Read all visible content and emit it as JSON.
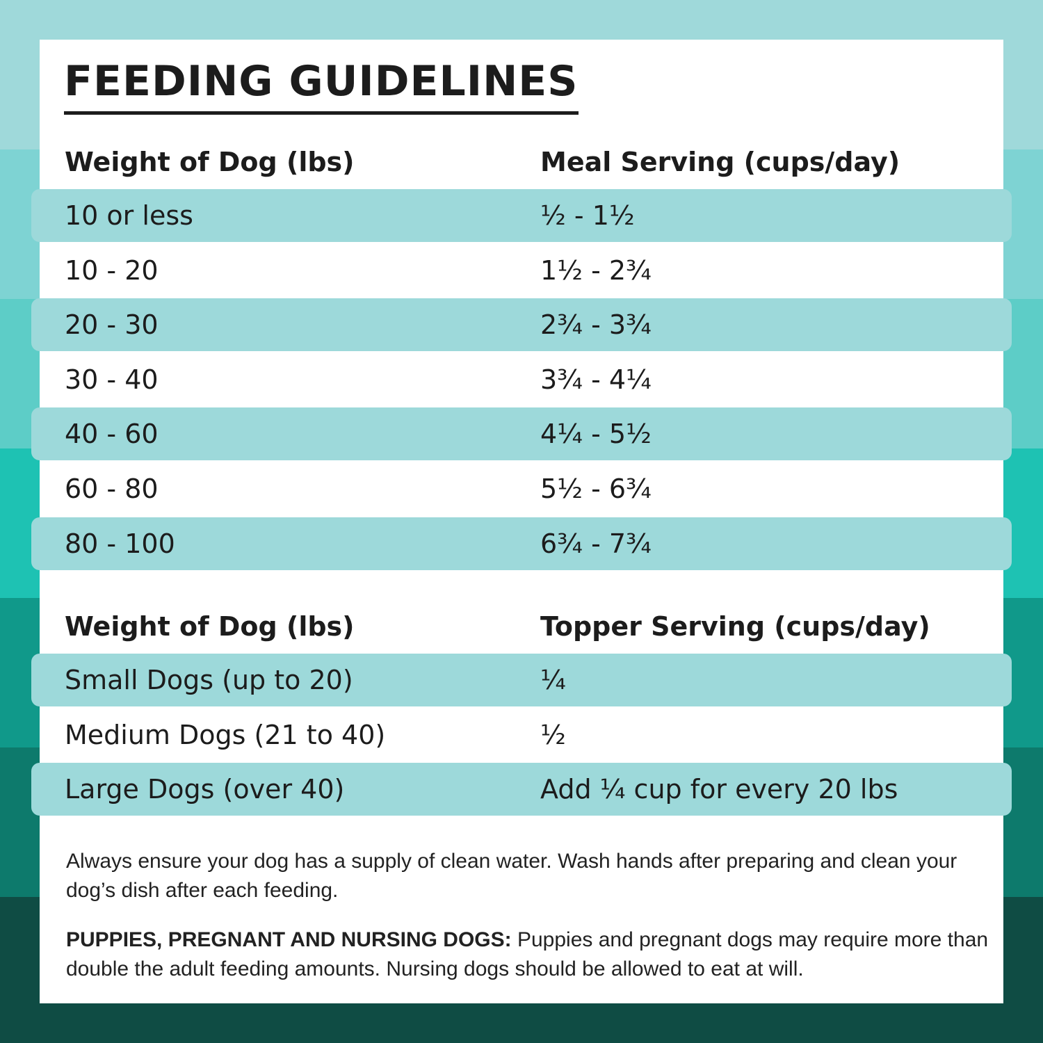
{
  "title": "FEEDING GUIDELINES",
  "tables": [
    {
      "header": [
        "Weight of Dog (lbs)",
        "Meal Serving (cups/day)"
      ],
      "rows": [
        [
          "10 or less",
          "½ - 1½"
        ],
        [
          "10 - 20",
          "1½ - 2¾"
        ],
        [
          "20 - 30",
          "2¾ - 3¾"
        ],
        [
          "30 - 40",
          "3¾ - 4¼"
        ],
        [
          "40 - 60",
          "4¼ - 5½"
        ],
        [
          "60 - 80",
          "5½ - 6¾"
        ],
        [
          "80 - 100",
          "6¾ - 7¾"
        ]
      ]
    },
    {
      "header": [
        "Weight of Dog (lbs)",
        "Topper Serving (cups/day)"
      ],
      "rows": [
        [
          "Small Dogs (up to 20)",
          "¼"
        ],
        [
          "Medium Dogs (21 to 40)",
          "½"
        ],
        [
          "Large Dogs (over 40)",
          "Add ¼ cup for every 20 lbs"
        ]
      ]
    }
  ],
  "notes": {
    "water": "Always ensure your dog has a supply of clean water. Wash hands after preparing and clean your dog’s dish after each feeding.",
    "puppies": {
      "label": "PUPPIES, PREGNANT AND NURSING DOGS:",
      "text": "Puppies and pregnant dogs may require more than double the adult feeding amounts. Nursing dogs should be allowed to eat at will."
    }
  }
}
